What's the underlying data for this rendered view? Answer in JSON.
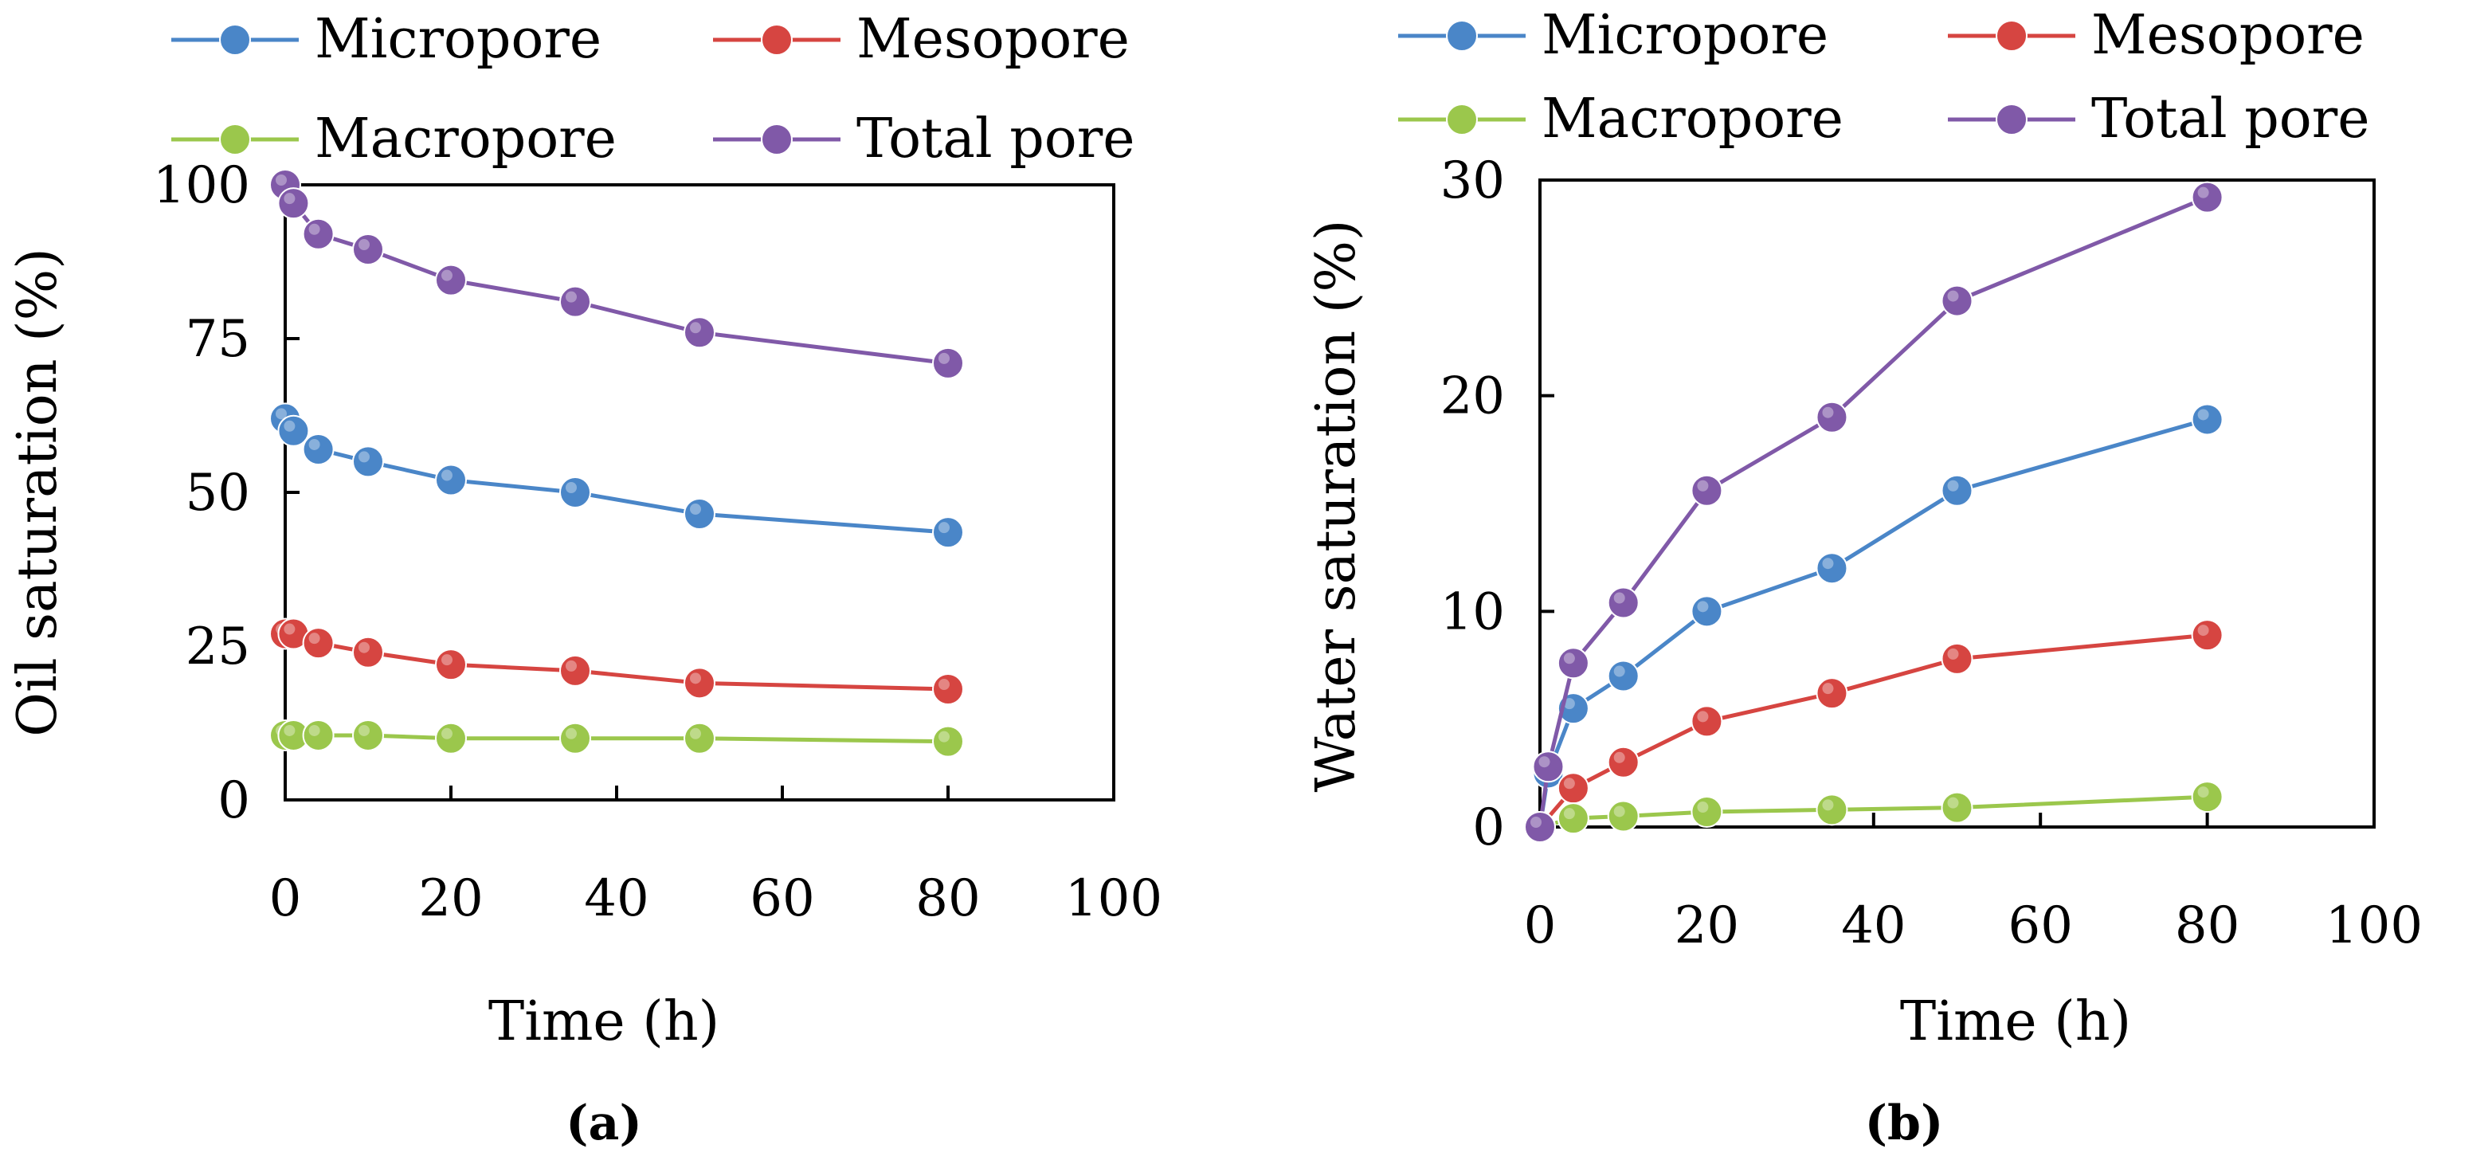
{
  "chart_data": [
    {
      "panel": "a",
      "panel_label": "(a)",
      "type": "line",
      "xlabel": "Time (h)",
      "ylabel": "Oil saturation (%)",
      "xlim": [
        0,
        100
      ],
      "ylim": [
        0,
        100
      ],
      "xticks": [
        "0",
        "20",
        "40",
        "60",
        "80",
        "100"
      ],
      "yticks": [
        "0",
        "25",
        "50",
        "75",
        "100"
      ],
      "x": [
        0,
        1,
        4,
        10,
        20,
        35,
        50,
        80
      ],
      "series": [
        {
          "name": "Micropore",
          "color": "#4a86c8",
          "values": [
            62,
            60,
            57,
            55,
            52,
            50,
            46.5,
            43.5
          ]
        },
        {
          "name": "Mesopore",
          "color": "#d64541",
          "values": [
            27,
            27,
            25.5,
            24,
            22,
            21,
            19,
            18
          ]
        },
        {
          "name": "Macropore",
          "color": "#9bc74c",
          "values": [
            10.5,
            10.5,
            10.5,
            10.5,
            10,
            10,
            10,
            9.5
          ]
        },
        {
          "name": "Total pore",
          "color": "#8059a8",
          "values": [
            100,
            97,
            92,
            89.5,
            84.5,
            81,
            76,
            71
          ]
        }
      ]
    },
    {
      "panel": "b",
      "panel_label": "(b)",
      "type": "line",
      "xlabel": "Time (h)",
      "ylabel": "Water saturation (%)",
      "xlim": [
        0,
        100
      ],
      "ylim": [
        0,
        30
      ],
      "xticks": [
        "0",
        "20",
        "40",
        "60",
        "80",
        "100"
      ],
      "yticks": [
        "0",
        "10",
        "20",
        "30"
      ],
      "x": [
        0,
        1,
        4,
        10,
        20,
        35,
        50,
        80
      ],
      "series": [
        {
          "name": "Micropore",
          "color": "#4a86c8",
          "values": [
            0,
            2.5,
            5.5,
            7,
            10,
            12,
            15.6,
            18.9
          ]
        },
        {
          "name": "Mesopore",
          "color": "#d64541",
          "values": [
            0,
            null,
            1.8,
            3,
            4.9,
            6.2,
            7.8,
            8.9
          ]
        },
        {
          "name": "Macropore",
          "color": "#9bc74c",
          "values": [
            0,
            null,
            0.4,
            0.5,
            0.7,
            0.8,
            0.9,
            1.4
          ]
        },
        {
          "name": "Total pore",
          "color": "#8059a8",
          "values": [
            0,
            2.8,
            7.6,
            10.4,
            15.6,
            19,
            24.4,
            29.2
          ]
        }
      ]
    }
  ]
}
